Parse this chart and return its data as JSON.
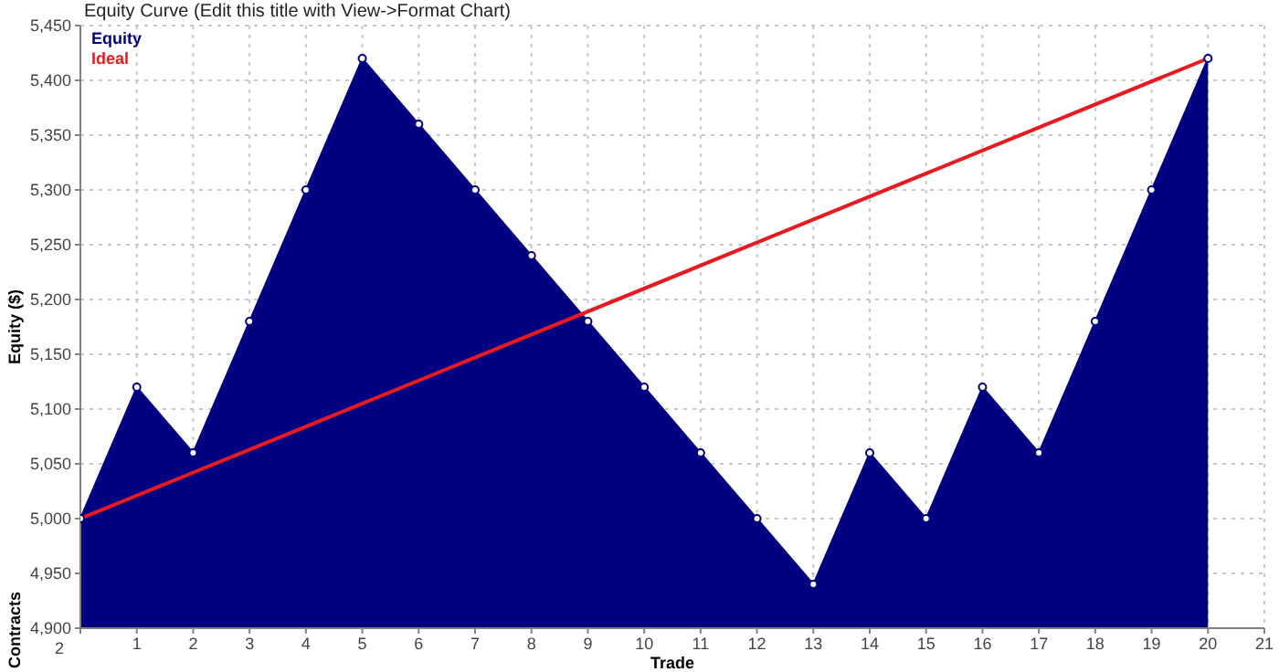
{
  "chart_data": {
    "type": "area",
    "title": "Equity Curve (Edit this title with View->Format Chart)",
    "xlabel": "Trade",
    "ylabel": "Equity ($)",
    "annotations": [
      "Contracts",
      "2"
    ],
    "x": [
      0,
      1,
      2,
      3,
      4,
      5,
      6,
      7,
      8,
      9,
      10,
      11,
      12,
      13,
      14,
      15,
      16,
      17,
      18,
      19,
      20
    ],
    "series": [
      {
        "name": "Equity",
        "color": "#000080",
        "marker": "circle",
        "values": [
          5000,
          5120,
          5060,
          5180,
          5300,
          5420,
          5360,
          5300,
          5240,
          5180,
          5120,
          5060,
          5000,
          4940,
          5060,
          5000,
          5120,
          5060,
          5180,
          5300,
          5420
        ]
      },
      {
        "name": "Ideal",
        "type": "line",
        "color": "#e8191f",
        "x": [
          0,
          20
        ],
        "values": [
          5000,
          5420
        ]
      }
    ],
    "xlim": [
      0,
      21
    ],
    "xticks": [
      {
        "value": 0,
        "label": null
      },
      1,
      2,
      3,
      4,
      5,
      6,
      7,
      8,
      9,
      10,
      11,
      12,
      13,
      14,
      15,
      16,
      17,
      18,
      19,
      20,
      21
    ],
    "ylim": [
      4900,
      5450
    ],
    "yticks": [
      {
        "value": 4900,
        "label": "4,900"
      },
      {
        "value": 4950,
        "label": "4,950"
      },
      {
        "value": 5000,
        "label": "5,000"
      },
      {
        "value": 5050,
        "label": "5,050"
      },
      {
        "value": 5100,
        "label": "5,100"
      },
      {
        "value": 5150,
        "label": "5,150"
      },
      {
        "value": 5200,
        "label": "5,200"
      },
      {
        "value": 5250,
        "label": "5,250"
      },
      {
        "value": 5300,
        "label": "5,300"
      },
      {
        "value": 5350,
        "label": "5,350"
      },
      {
        "value": 5400,
        "label": "5,400"
      },
      {
        "value": 5450,
        "label": "5,450"
      }
    ],
    "grid": true,
    "legend": "top left"
  }
}
